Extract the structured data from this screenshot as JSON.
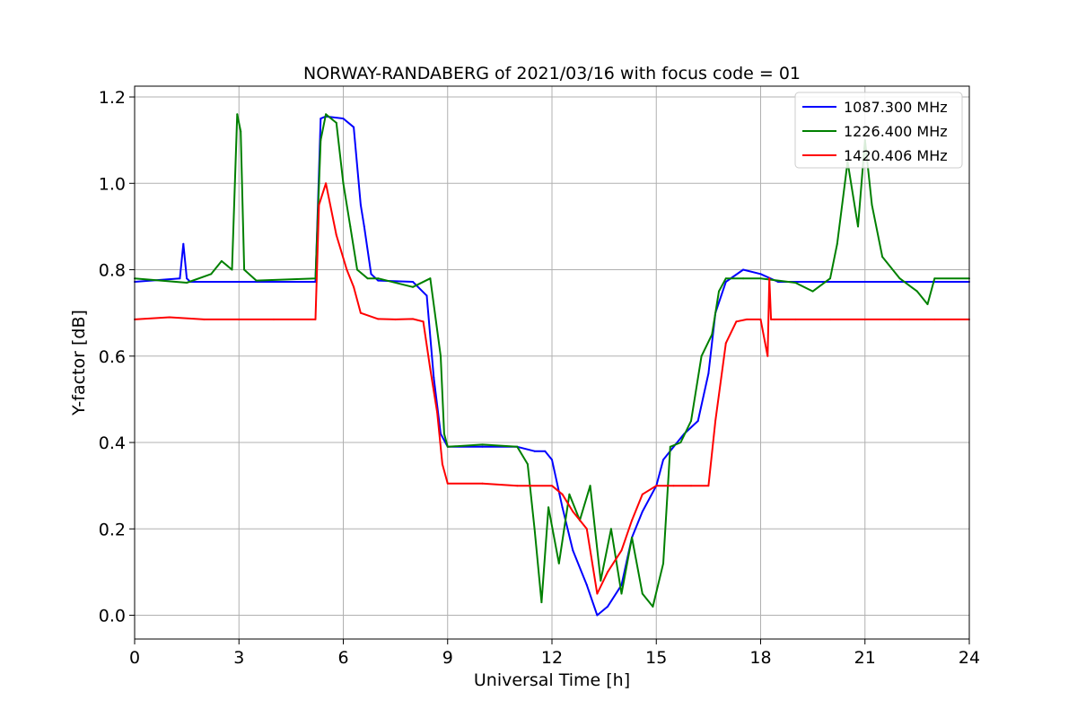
{
  "chart_data": {
    "type": "line",
    "title": "NORWAY-RANDABERG of 2021/03/16 with focus code = 01",
    "xlabel": "Universal Time [h]",
    "ylabel": "Y-factor [dB]",
    "xlim": [
      0,
      24
    ],
    "ylim": [
      -0.055,
      1.225
    ],
    "xticks": [
      0,
      3,
      6,
      9,
      12,
      15,
      18,
      21,
      24
    ],
    "yticks": [
      0.0,
      0.2,
      0.4,
      0.6,
      0.8,
      1.0,
      1.2
    ],
    "xtick_labels": [
      "0",
      "3",
      "6",
      "9",
      "12",
      "15",
      "18",
      "21",
      "24"
    ],
    "ytick_labels": [
      "0.0",
      "0.2",
      "0.4",
      "0.6",
      "0.8",
      "1.0",
      "1.2"
    ],
    "grid": true,
    "legend_position": "top-right",
    "series": [
      {
        "name": "1087.300 MHz",
        "color": "#0000ff",
        "x": [
          0,
          1.3,
          1.4,
          1.5,
          1.6,
          3.0,
          3.1,
          5.2,
          5.35,
          5.5,
          6.0,
          6.3,
          6.5,
          6.6,
          6.8,
          7.0,
          8.0,
          8.4,
          8.6,
          8.8,
          9.0,
          10.0,
          11.0,
          11.5,
          11.8,
          12.0,
          12.3,
          12.6,
          13.0,
          13.3,
          13.6,
          14.0,
          14.3,
          14.6,
          15.0,
          15.2,
          15.5,
          15.8,
          16.2,
          16.5,
          16.7,
          17.0,
          17.5,
          18.0,
          18.5,
          19.0,
          20.0,
          21.0,
          22.0,
          23.0,
          24.0
        ],
        "values": [
          0.772,
          0.78,
          0.86,
          0.78,
          0.772,
          0.772,
          0.772,
          0.772,
          1.15,
          1.155,
          1.15,
          1.13,
          0.95,
          0.9,
          0.79,
          0.775,
          0.772,
          0.74,
          0.55,
          0.42,
          0.39,
          0.39,
          0.39,
          0.38,
          0.38,
          0.36,
          0.25,
          0.15,
          0.07,
          0.0,
          0.02,
          0.07,
          0.18,
          0.24,
          0.3,
          0.36,
          0.39,
          0.42,
          0.45,
          0.56,
          0.7,
          0.772,
          0.8,
          0.79,
          0.772,
          0.772,
          0.772,
          0.772,
          0.772,
          0.772,
          0.772
        ]
      },
      {
        "name": "1226.400 MHz",
        "color": "#008000",
        "x": [
          0,
          1.5,
          2.2,
          2.5,
          2.8,
          2.95,
          3.05,
          3.15,
          3.5,
          5.2,
          5.35,
          5.5,
          5.8,
          6.0,
          6.2,
          6.4,
          6.7,
          7.0,
          8.0,
          8.5,
          8.8,
          8.9,
          9.0,
          10.0,
          11.0,
          11.3,
          11.5,
          11.7,
          11.9,
          12.2,
          12.5,
          12.8,
          13.1,
          13.4,
          13.7,
          14.0,
          14.3,
          14.6,
          14.9,
          15.2,
          15.4,
          15.7,
          16.0,
          16.3,
          16.6,
          16.8,
          17.0,
          17.5,
          18.0,
          19.0,
          19.5,
          20.0,
          20.2,
          20.5,
          20.8,
          21.0,
          21.2,
          21.5,
          22.0,
          22.5,
          22.8,
          23.0,
          24.0
        ],
        "values": [
          0.78,
          0.77,
          0.79,
          0.82,
          0.8,
          1.16,
          1.12,
          0.8,
          0.775,
          0.78,
          1.1,
          1.16,
          1.14,
          1.0,
          0.9,
          0.8,
          0.78,
          0.78,
          0.76,
          0.78,
          0.6,
          0.42,
          0.39,
          0.395,
          0.39,
          0.35,
          0.2,
          0.03,
          0.25,
          0.12,
          0.28,
          0.22,
          0.3,
          0.08,
          0.2,
          0.05,
          0.18,
          0.05,
          0.02,
          0.12,
          0.39,
          0.4,
          0.45,
          0.6,
          0.65,
          0.75,
          0.78,
          0.78,
          0.78,
          0.77,
          0.75,
          0.78,
          0.86,
          1.05,
          0.9,
          1.1,
          0.95,
          0.83,
          0.78,
          0.75,
          0.72,
          0.78,
          0.78
        ]
      },
      {
        "name": "1420.406 MHz",
        "color": "#ff0000",
        "x": [
          0,
          1.0,
          2.0,
          3.0,
          4.0,
          5.2,
          5.3,
          5.5,
          5.8,
          6.1,
          6.3,
          6.5,
          7.0,
          7.5,
          8.0,
          8.3,
          8.5,
          8.7,
          8.85,
          9.0,
          10.0,
          11.0,
          12.0,
          12.3,
          12.6,
          13.0,
          13.3,
          13.6,
          14.0,
          14.3,
          14.6,
          15.0,
          15.5,
          16.0,
          16.5,
          16.7,
          17.0,
          17.3,
          17.6,
          18.0,
          18.2,
          18.25,
          18.3,
          18.4,
          19.0,
          20.0,
          21.0,
          22.0,
          23.0,
          24.0
        ],
        "values": [
          0.685,
          0.69,
          0.685,
          0.685,
          0.685,
          0.685,
          0.95,
          1.0,
          0.88,
          0.8,
          0.76,
          0.7,
          0.686,
          0.685,
          0.686,
          0.68,
          0.57,
          0.47,
          0.35,
          0.305,
          0.305,
          0.3,
          0.3,
          0.28,
          0.24,
          0.2,
          0.05,
          0.1,
          0.15,
          0.22,
          0.28,
          0.3,
          0.3,
          0.3,
          0.3,
          0.45,
          0.63,
          0.68,
          0.685,
          0.685,
          0.6,
          0.78,
          0.685,
          0.685,
          0.685,
          0.685,
          0.685,
          0.685,
          0.685,
          0.685
        ]
      }
    ]
  }
}
